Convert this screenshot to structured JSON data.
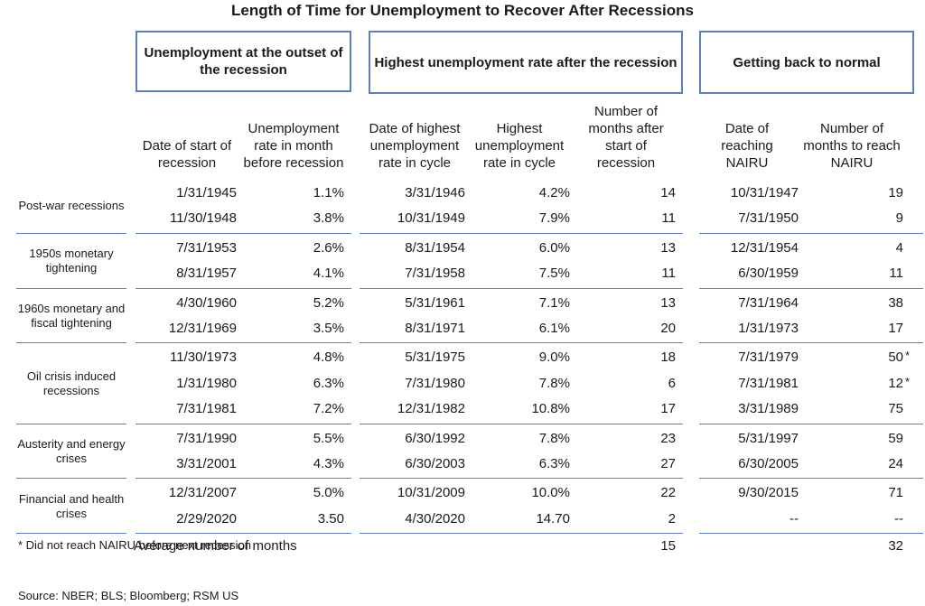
{
  "title": "Length of Time for Unemployment to Recover After Recessions",
  "group_headers": [
    "Unemployment at the outset of the recession",
    "Highest unemployment rate after the recession",
    "Getting back to normal"
  ],
  "column_headers": [
    "Date of start of recession",
    "Unemployment rate in month before recession",
    "Date of highest unemployment rate in cycle",
    "Highest unemployment rate in cycle",
    "Number of months after start of recession",
    "Date of reaching NAIRU",
    "Number of months to reach NAIRU"
  ],
  "colors": {
    "border": "#5b7fc0",
    "text": "#1a1a1a"
  },
  "chart_data": {
    "type": "table",
    "title": "Length of Time for Unemployment to Recover After Recessions",
    "groups": [
      {
        "label": "Post-war recessions",
        "rows": [
          {
            "start": "1/31/1945",
            "rate_before": "1.1%",
            "peak_date": "3/31/1946",
            "peak_rate": "4.2%",
            "months_to_peak": "14",
            "nairu_date": "10/31/1947",
            "months_to_nairu": "19",
            "note": ""
          },
          {
            "start": "11/30/1948",
            "rate_before": "3.8%",
            "peak_date": "10/31/1949",
            "peak_rate": "7.9%",
            "months_to_peak": "11",
            "nairu_date": "7/31/1950",
            "months_to_nairu": "9",
            "note": ""
          }
        ]
      },
      {
        "label": "1950s monetary tightening",
        "rows": [
          {
            "start": "7/31/1953",
            "rate_before": "2.6%",
            "peak_date": "8/31/1954",
            "peak_rate": "6.0%",
            "months_to_peak": "13",
            "nairu_date": "12/31/1954",
            "months_to_nairu": "4",
            "note": ""
          },
          {
            "start": "8/31/1957",
            "rate_before": "4.1%",
            "peak_date": "7/31/1958",
            "peak_rate": "7.5%",
            "months_to_peak": "11",
            "nairu_date": "6/30/1959",
            "months_to_nairu": "11",
            "note": ""
          }
        ]
      },
      {
        "label": "1960s monetary and fiscal tightening",
        "rows": [
          {
            "start": "4/30/1960",
            "rate_before": "5.2%",
            "peak_date": "5/31/1961",
            "peak_rate": "7.1%",
            "months_to_peak": "13",
            "nairu_date": "7/31/1964",
            "months_to_nairu": "38",
            "note": ""
          },
          {
            "start": "12/31/1969",
            "rate_before": "3.5%",
            "peak_date": "8/31/1971",
            "peak_rate": "6.1%",
            "months_to_peak": "20",
            "nairu_date": "1/31/1973",
            "months_to_nairu": "17",
            "note": ""
          }
        ]
      },
      {
        "label": "Oil crisis induced recessions",
        "rows": [
          {
            "start": "11/30/1973",
            "rate_before": "4.8%",
            "peak_date": "5/31/1975",
            "peak_rate": "9.0%",
            "months_to_peak": "18",
            "nairu_date": "7/31/1979",
            "months_to_nairu": "50",
            "note": "*"
          },
          {
            "start": "1/31/1980",
            "rate_before": "6.3%",
            "peak_date": "7/31/1980",
            "peak_rate": "7.8%",
            "months_to_peak": "6",
            "nairu_date": "7/31/1981",
            "months_to_nairu": "12",
            "note": "*"
          },
          {
            "start": "7/31/1981",
            "rate_before": "7.2%",
            "peak_date": "12/31/1982",
            "peak_rate": "10.8%",
            "months_to_peak": "17",
            "nairu_date": "3/31/1989",
            "months_to_nairu": "75",
            "note": ""
          }
        ]
      },
      {
        "label": "Austerity and energy crises",
        "rows": [
          {
            "start": "7/31/1990",
            "rate_before": "5.5%",
            "peak_date": "6/30/1992",
            "peak_rate": "7.8%",
            "months_to_peak": "23",
            "nairu_date": "5/31/1997",
            "months_to_nairu": "59",
            "note": ""
          },
          {
            "start": "3/31/2001",
            "rate_before": "4.3%",
            "peak_date": "6/30/2003",
            "peak_rate": "6.3%",
            "months_to_peak": "27",
            "nairu_date": "6/30/2005",
            "months_to_nairu": "24",
            "note": ""
          }
        ]
      },
      {
        "label": "Financial and health crises",
        "rows": [
          {
            "start": "12/31/2007",
            "rate_before": "5.0%",
            "peak_date": "10/31/2009",
            "peak_rate": "10.0%",
            "months_to_peak": "22",
            "nairu_date": "9/30/2015",
            "months_to_nairu": "71",
            "note": ""
          },
          {
            "start": "2/29/2020",
            "rate_before": "3.50",
            "peak_date": "4/30/2020",
            "peak_rate": "14.70",
            "months_to_peak": "2",
            "nairu_date": "--",
            "months_to_nairu": "--",
            "note": ""
          }
        ]
      }
    ],
    "average": {
      "label": "Average number of months",
      "months_to_peak": "15",
      "months_to_nairu": "32"
    }
  },
  "footnote": "* Did not reach NAIRU before next recession",
  "source": "Source: NBER; BLS; Bloomberg; RSM US"
}
